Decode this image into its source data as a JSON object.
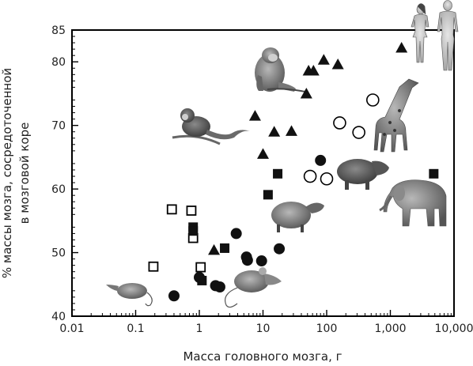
{
  "chart_data": {
    "type": "scatter",
    "xlabel": "Масса головного мозга, г",
    "ylabel_line1": "% массы мозга, сосредоточенной",
    "ylabel_line2": "в мозговой коре",
    "x_scale": "log",
    "xlim": [
      0.01,
      10000
    ],
    "ylim": [
      40,
      85
    ],
    "x_ticks": [
      {
        "value": 0.01,
        "label": "0.01"
      },
      {
        "value": 0.1,
        "label": "0.1"
      },
      {
        "value": 1,
        "label": "1"
      },
      {
        "value": 10,
        "label": "10"
      },
      {
        "value": 100,
        "label": "100"
      },
      {
        "value": 1000,
        "label": "1,000"
      },
      {
        "value": 10000,
        "label": "10,000"
      }
    ],
    "y_ticks": [
      {
        "value": 40,
        "label": "40"
      },
      {
        "value": 50,
        "label": "50"
      },
      {
        "value": 60,
        "label": "60"
      },
      {
        "value": 70,
        "label": "70"
      },
      {
        "value": 80,
        "label": "80"
      },
      {
        "value": 85,
        "label": "85"
      }
    ],
    "grid": false,
    "series": [
      {
        "marker": "square-open",
        "color": "#000000",
        "points": [
          [
            0.19,
            47.8
          ],
          [
            0.37,
            56.8
          ],
          [
            0.75,
            56.6
          ],
          [
            0.8,
            52.3
          ],
          [
            1.05,
            47.7
          ]
        ]
      },
      {
        "marker": "square-filled",
        "color": "#111111",
        "points": [
          [
            0.8,
            54.0
          ],
          [
            0.8,
            53.4
          ],
          [
            1.1,
            45.6
          ],
          [
            2.5,
            50.7
          ],
          [
            12.0,
            59.1
          ],
          [
            17.0,
            62.4
          ],
          [
            4800,
            62.4
          ]
        ]
      },
      {
        "marker": "circle-filled",
        "color": "#111111",
        "points": [
          [
            0.4,
            43.2
          ],
          [
            1.0,
            46.1
          ],
          [
            1.8,
            44.8
          ],
          [
            2.1,
            44.6
          ],
          [
            3.8,
            53.0
          ],
          [
            5.5,
            49.3
          ],
          [
            5.7,
            48.8
          ],
          [
            9.5,
            48.7
          ],
          [
            18.0,
            50.6
          ],
          [
            80.0,
            64.5
          ]
        ]
      },
      {
        "marker": "circle-open",
        "color": "#000000",
        "points": [
          [
            55.0,
            62.0
          ],
          [
            100.0,
            61.6
          ],
          [
            160.0,
            70.4
          ],
          [
            320.0,
            68.9
          ],
          [
            530.0,
            74.0
          ]
        ]
      },
      {
        "marker": "triangle-filled",
        "color": "#111111",
        "points": [
          [
            1.7,
            50.4
          ],
          [
            7.5,
            71.5
          ],
          [
            10.0,
            65.5
          ],
          [
            15.0,
            69.0
          ],
          [
            28.0,
            69.1
          ],
          [
            48.0,
            75.0
          ],
          [
            52.0,
            78.6
          ],
          [
            62.0,
            78.6
          ],
          [
            90.0,
            80.3
          ],
          [
            150.0,
            79.6
          ],
          [
            1500.0,
            82.2
          ]
        ]
      }
    ],
    "illustrations": [
      "human-figures",
      "monkey",
      "marmoset",
      "giraffe",
      "capybara",
      "elephant",
      "agouti",
      "rat",
      "mouse"
    ]
  }
}
